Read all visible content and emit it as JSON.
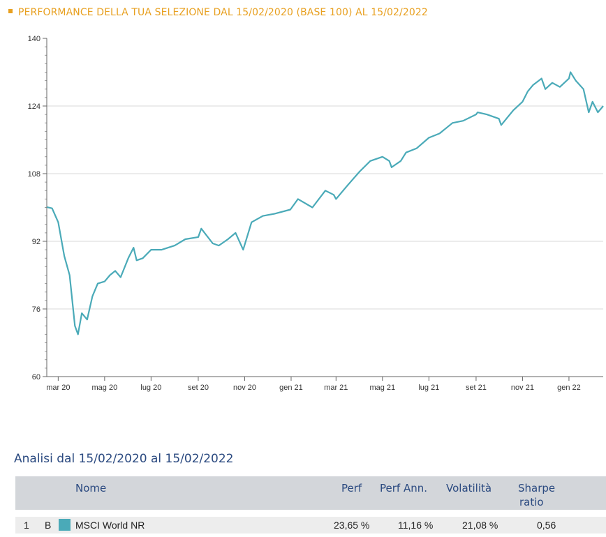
{
  "header": {
    "title": "PERFORMANCE DELLA TUA SELEZIONE DAL 15/02/2020 (BASE 100) AL 15/02/2022"
  },
  "chart_data": {
    "type": "line",
    "title": "PERFORMANCE DELLA TUA SELEZIONE DAL 15/02/2020 (BASE 100) AL 15/02/2022",
    "ylim": [
      60,
      140
    ],
    "yticks": [
      "140",
      "124",
      "108",
      "92",
      "76",
      "60"
    ],
    "xticks": [
      "mar 20",
      "mag 20",
      "lug 20",
      "set 20",
      "nov 20",
      "gen 21",
      "mar 21",
      "mag 21",
      "lug 21",
      "set 21",
      "nov 21",
      "gen 22"
    ],
    "grid": true,
    "color": "#4aaab8",
    "x": [
      "2020-02-15",
      "2020-02-22",
      "2020-03-01",
      "2020-03-09",
      "2020-03-16",
      "2020-03-23",
      "2020-03-27",
      "2020-04-01",
      "2020-04-08",
      "2020-04-15",
      "2020-04-22",
      "2020-05-01",
      "2020-05-08",
      "2020-05-15",
      "2020-05-22",
      "2020-06-01",
      "2020-06-08",
      "2020-06-12",
      "2020-06-20",
      "2020-07-01",
      "2020-07-15",
      "2020-08-01",
      "2020-08-15",
      "2020-09-01",
      "2020-09-05",
      "2020-09-20",
      "2020-09-28",
      "2020-10-10",
      "2020-10-20",
      "2020-10-30",
      "2020-11-10",
      "2020-11-25",
      "2020-12-10",
      "2020-12-31",
      "2021-01-10",
      "2021-01-29",
      "2021-02-15",
      "2021-02-26",
      "2021-03-01",
      "2021-03-15",
      "2021-04-01",
      "2021-04-15",
      "2021-05-01",
      "2021-05-10",
      "2021-05-13",
      "2021-05-25",
      "2021-06-01",
      "2021-06-15",
      "2021-07-01",
      "2021-07-15",
      "2021-08-01",
      "2021-08-15",
      "2021-09-01",
      "2021-09-03",
      "2021-09-15",
      "2021-10-01",
      "2021-10-04",
      "2021-10-20",
      "2021-11-01",
      "2021-11-08",
      "2021-11-15",
      "2021-11-26",
      "2021-12-01",
      "2021-12-10",
      "2021-12-20",
      "2022-01-01",
      "2022-01-03",
      "2022-01-10",
      "2022-01-20",
      "2022-01-27",
      "2022-02-01",
      "2022-02-08",
      "2022-02-15"
    ],
    "series": [
      {
        "values": [
          100.1,
          99.8,
          96.5,
          88.5,
          84.0,
          72.0,
          70.0,
          75.0,
          73.5,
          79.0,
          82.0,
          82.5,
          84.0,
          85.0,
          83.5,
          88.0,
          90.5,
          87.5,
          88.0,
          90.0,
          90.0,
          91.0,
          92.5,
          93.0,
          95.0,
          91.5,
          91.0,
          92.5,
          94.0,
          90.0,
          96.5,
          98.0,
          98.5,
          99.5,
          102.0,
          100.0,
          104.0,
          103.0,
          102.0,
          105.0,
          108.5,
          111.0,
          112.0,
          111.0,
          109.5,
          111.0,
          113.0,
          114.0,
          116.5,
          117.5,
          120.0,
          120.5,
          122.0,
          122.5,
          122.0,
          121.0,
          119.5,
          123.0,
          125.0,
          127.5,
          129.0,
          130.5,
          128.0,
          129.5,
          128.5,
          130.5,
          132.0,
          130.0,
          128.0,
          122.5,
          125.0,
          122.5,
          124.0
        ]
      }
    ]
  },
  "analysis": {
    "title": "Analisi dal 15/02/2020 al 15/02/2022",
    "columns": {
      "name": "Nome",
      "perf": "Perf",
      "perf_ann": "Perf Ann.",
      "volatility": "Volatilità",
      "sharpe_1": "Sharpe",
      "sharpe_2": "ratio"
    },
    "rows": [
      {
        "index": "1",
        "letter": "B",
        "color": "#4aaab8",
        "name": "MSCI World NR",
        "perf": "23,65 %",
        "perf_ann": "11,16 %",
        "volatility": "21,08 %",
        "sharpe": "0,56"
      }
    ]
  }
}
